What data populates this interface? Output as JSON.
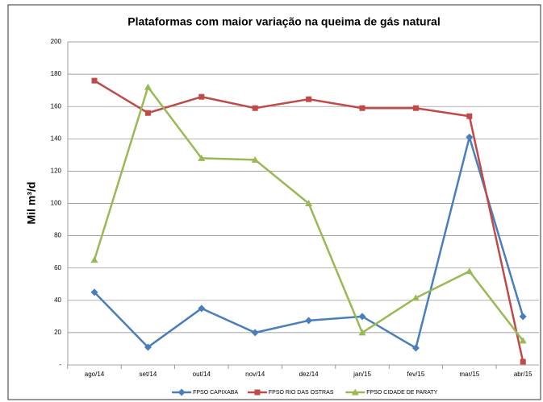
{
  "chart_data": {
    "type": "line",
    "title": "Plataformas com maior variação na queima de gás natural",
    "y_label": "Mil m³/d",
    "categories": [
      "ago/14",
      "set/14",
      "out/14",
      "nov/14",
      "dez/14",
      "jan/15",
      "fev/15",
      "mar/15",
      "abr/15"
    ],
    "series": [
      {
        "name": "FPSO CAPIXABA",
        "color": "#4a7ebb",
        "marker": "diamond",
        "values": [
          45,
          11,
          35,
          20,
          27.5,
          30,
          10.5,
          141,
          30
        ]
      },
      {
        "name": "FPSO RIO DAS OSTRAS",
        "color": "#be4b48",
        "marker": "square",
        "values": [
          176,
          156,
          166,
          159,
          164.5,
          159,
          159,
          154,
          2
        ]
      },
      {
        "name": "FPSO CIDADE DE PARATY",
        "color": "#98b954",
        "marker": "triangle",
        "values": [
          65,
          172,
          128,
          127,
          100,
          20,
          41.5,
          58,
          15
        ]
      }
    ],
    "ylim": [
      0,
      200
    ],
    "yticks": [
      {
        "value": 0,
        "label": "-"
      },
      20,
      40,
      60,
      80,
      100,
      120,
      140,
      160,
      180,
      200
    ],
    "grid": true,
    "legend": "bottom"
  }
}
